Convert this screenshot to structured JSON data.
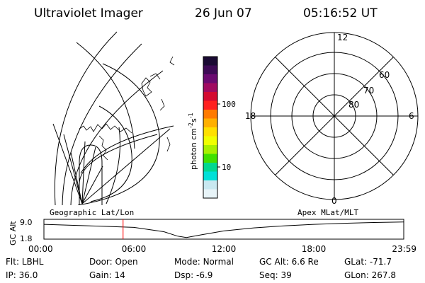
{
  "header": {
    "title": "Ultraviolet Imager",
    "date": "26 Jun 07",
    "time": "05:16:52 UT"
  },
  "colorbar": {
    "label_main": "photon cm",
    "label_sup1": "-2",
    "label_mid": "s",
    "label_sup2": "-1",
    "ticks": [
      "100",
      "10"
    ],
    "colors": [
      "#1a0a33",
      "#3d0a55",
      "#6a0a70",
      "#a00a60",
      "#d40a30",
      "#ff2020",
      "#ff7a00",
      "#ffb000",
      "#ffe000",
      "#f0ff00",
      "#a8f000",
      "#40e000",
      "#00d890",
      "#00e0d8",
      "#c8e8f0",
      "#e8f4f8"
    ]
  },
  "geo_map": {
    "label": "Geographic Lat/Lon"
  },
  "polar": {
    "label": "Apex MLat/MLT",
    "mlt_labels": {
      "top": "12",
      "left": "18",
      "right": "6",
      "bottom": "0"
    },
    "lat_labels": [
      "60",
      "70",
      "80"
    ]
  },
  "chart_data": {
    "type": "line",
    "ylabel": "GC Alt",
    "yticks": [
      "9.0",
      "1.8"
    ],
    "ylim": [
      1.8,
      9.0
    ],
    "xticks": [
      "00:00",
      "06:00",
      "12:00",
      "18:00",
      "23:59"
    ],
    "x_hours": [
      0,
      2,
      4,
      6,
      8,
      8.9,
      9.5,
      10.5,
      12,
      14,
      16,
      18,
      20,
      22,
      23.98
    ],
    "y_re": [
      7.6,
      7.2,
      6.8,
      6.4,
      4.7,
      3.0,
      2.4,
      3.5,
      5.0,
      6.2,
      7.0,
      7.6,
      8.0,
      8.3,
      8.5
    ],
    "current_time_hours": 5.28,
    "current_marker_color": "#ff0000"
  },
  "info": {
    "row1": [
      {
        "label": "Flt:",
        "value": "LBHL"
      },
      {
        "label": "Door:",
        "value": "Open"
      },
      {
        "label": "Mode:",
        "value": "Normal"
      },
      {
        "label": "GC Alt:",
        "value": "6.6 Re"
      },
      {
        "label": "GLat:",
        "value": "-71.7"
      }
    ],
    "row2": [
      {
        "label": "IP:",
        "value": "36.0"
      },
      {
        "label": "Gain:",
        "value": "14"
      },
      {
        "label": "Dsp:",
        "value": "-6.9"
      },
      {
        "label": "Seq:",
        "value": "39"
      },
      {
        "label": "GLon:",
        "value": "267.8"
      }
    ]
  }
}
